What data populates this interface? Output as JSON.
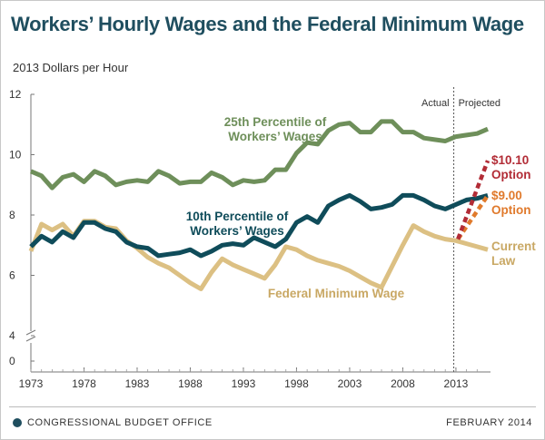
{
  "title": "Workers’ Hourly Wages and the Federal Minimum Wage",
  "subtitle": "2013 Dollars per Hour",
  "footer": {
    "agency": "CONGRESSIONAL BUDGET OFFICE",
    "date": "FEBRUARY 2014"
  },
  "colors": {
    "p25": "#6e8f5a",
    "p10": "#0f4c5a",
    "minwage": "#dcc083",
    "opt1010": "#b22c36",
    "opt900": "#e07a2c",
    "text_p25": "#6e8f5a",
    "text_p10": "#0f4c5a",
    "text_min": "#c9a864"
  },
  "chart_data": {
    "type": "line",
    "xlim": [
      1973,
      2016
    ],
    "ylim": [
      0,
      12
    ],
    "axis_break": true,
    "yticks": [
      "0",
      "4",
      "6",
      "8",
      "10",
      "12"
    ],
    "xticks": [
      "1973",
      "1978",
      "1983",
      "1988",
      "1993",
      "1998",
      "2003",
      "2008",
      "2013"
    ],
    "annotations": {
      "actual": "Actual",
      "projected": "Projected",
      "divider_x": 2012.8
    },
    "series": [
      {
        "id": "p25",
        "name": "25th Percentile of Workers’ Wages",
        "x": [
          1973,
          1974,
          1975,
          1976,
          1977,
          1978,
          1979,
          1980,
          1981,
          1982,
          1983,
          1984,
          1985,
          1986,
          1987,
          1988,
          1989,
          1990,
          1991,
          1992,
          1993,
          1994,
          1995,
          1996,
          1997,
          1998,
          1999,
          2000,
          2001,
          2002,
          2003,
          2004,
          2005,
          2006,
          2007,
          2008,
          2009,
          2010,
          2011,
          2012,
          2013,
          2014,
          2015,
          2016
        ],
        "y": [
          9.45,
          9.3,
          8.9,
          9.25,
          9.35,
          9.1,
          9.45,
          9.3,
          9.0,
          9.1,
          9.15,
          9.1,
          9.45,
          9.3,
          9.05,
          9.1,
          9.1,
          9.4,
          9.25,
          9.0,
          9.15,
          9.1,
          9.15,
          9.5,
          9.5,
          10.05,
          10.4,
          10.35,
          10.8,
          11.0,
          11.05,
          10.75,
          10.75,
          11.1,
          11.1,
          10.75,
          10.75,
          10.55,
          10.5,
          10.45,
          10.6,
          10.65,
          10.7,
          10.85
        ]
      },
      {
        "id": "p10",
        "name": "10th Percentile of Workers’ Wages",
        "x": [
          1973,
          1974,
          1975,
          1976,
          1977,
          1978,
          1979,
          1980,
          1981,
          1982,
          1983,
          1984,
          1985,
          1986,
          1987,
          1988,
          1989,
          1990,
          1991,
          1992,
          1993,
          1994,
          1995,
          1996,
          1997,
          1998,
          1999,
          2000,
          2001,
          2002,
          2003,
          2004,
          2005,
          2006,
          2007,
          2008,
          2009,
          2010,
          2011,
          2012,
          2013,
          2014,
          2015,
          2016
        ],
        "y": [
          6.95,
          7.3,
          7.1,
          7.45,
          7.25,
          7.75,
          7.75,
          7.55,
          7.45,
          7.1,
          6.95,
          6.9,
          6.65,
          6.7,
          6.75,
          6.85,
          6.65,
          6.8,
          7.0,
          7.05,
          7.0,
          7.25,
          7.1,
          6.95,
          7.2,
          7.75,
          7.95,
          7.75,
          8.3,
          8.5,
          8.65,
          8.45,
          8.2,
          8.25,
          8.35,
          8.65,
          8.65,
          8.5,
          8.3,
          8.2,
          8.35,
          8.5,
          8.55,
          8.65
        ]
      },
      {
        "id": "minwage",
        "name": "Federal Minimum Wage",
        "x": [
          1973,
          1974,
          1975,
          1976,
          1977,
          1978,
          1979,
          1980,
          1981,
          1982,
          1983,
          1984,
          1985,
          1986,
          1987,
          1988,
          1989,
          1990,
          1991,
          1992,
          1993,
          1994,
          1995,
          1996,
          1997,
          1998,
          1999,
          2000,
          2001,
          2002,
          2003,
          2004,
          2005,
          2006,
          2007,
          2008,
          2009,
          2010,
          2011,
          2012,
          2013,
          2014,
          2015,
          2016
        ],
        "y": [
          6.8,
          7.7,
          7.5,
          7.7,
          7.3,
          7.8,
          7.8,
          7.6,
          7.55,
          7.15,
          6.9,
          6.6,
          6.4,
          6.25,
          6.0,
          5.75,
          5.55,
          6.1,
          6.55,
          6.35,
          6.2,
          6.05,
          5.9,
          6.35,
          6.95,
          6.85,
          6.65,
          6.5,
          6.4,
          6.3,
          6.15,
          5.95,
          5.75,
          5.6,
          6.3,
          7.0,
          7.65,
          7.45,
          7.3,
          7.2,
          7.15,
          7.05,
          6.95,
          6.85
        ]
      },
      {
        "id": "opt1010",
        "name": "$10.10 Option",
        "dashed": true,
        "x": [
          2013.2,
          2016
        ],
        "y": [
          7.2,
          9.8
        ]
      },
      {
        "id": "opt900",
        "name": "$9.00 Option",
        "dashed": true,
        "x": [
          2013.2,
          2016
        ],
        "y": [
          7.2,
          8.65
        ]
      }
    ],
    "labels": {
      "p25": [
        "25th Percentile of",
        "Workers’ Wages"
      ],
      "p10": [
        "10th Percentile of",
        "Workers’ Wages"
      ],
      "minwage": [
        "Federal Minimum Wage"
      ],
      "opt1010": [
        "$10.10",
        "Option"
      ],
      "opt900": [
        "$9.00",
        "Option"
      ],
      "current": [
        "Current",
        "Law"
      ]
    }
  }
}
